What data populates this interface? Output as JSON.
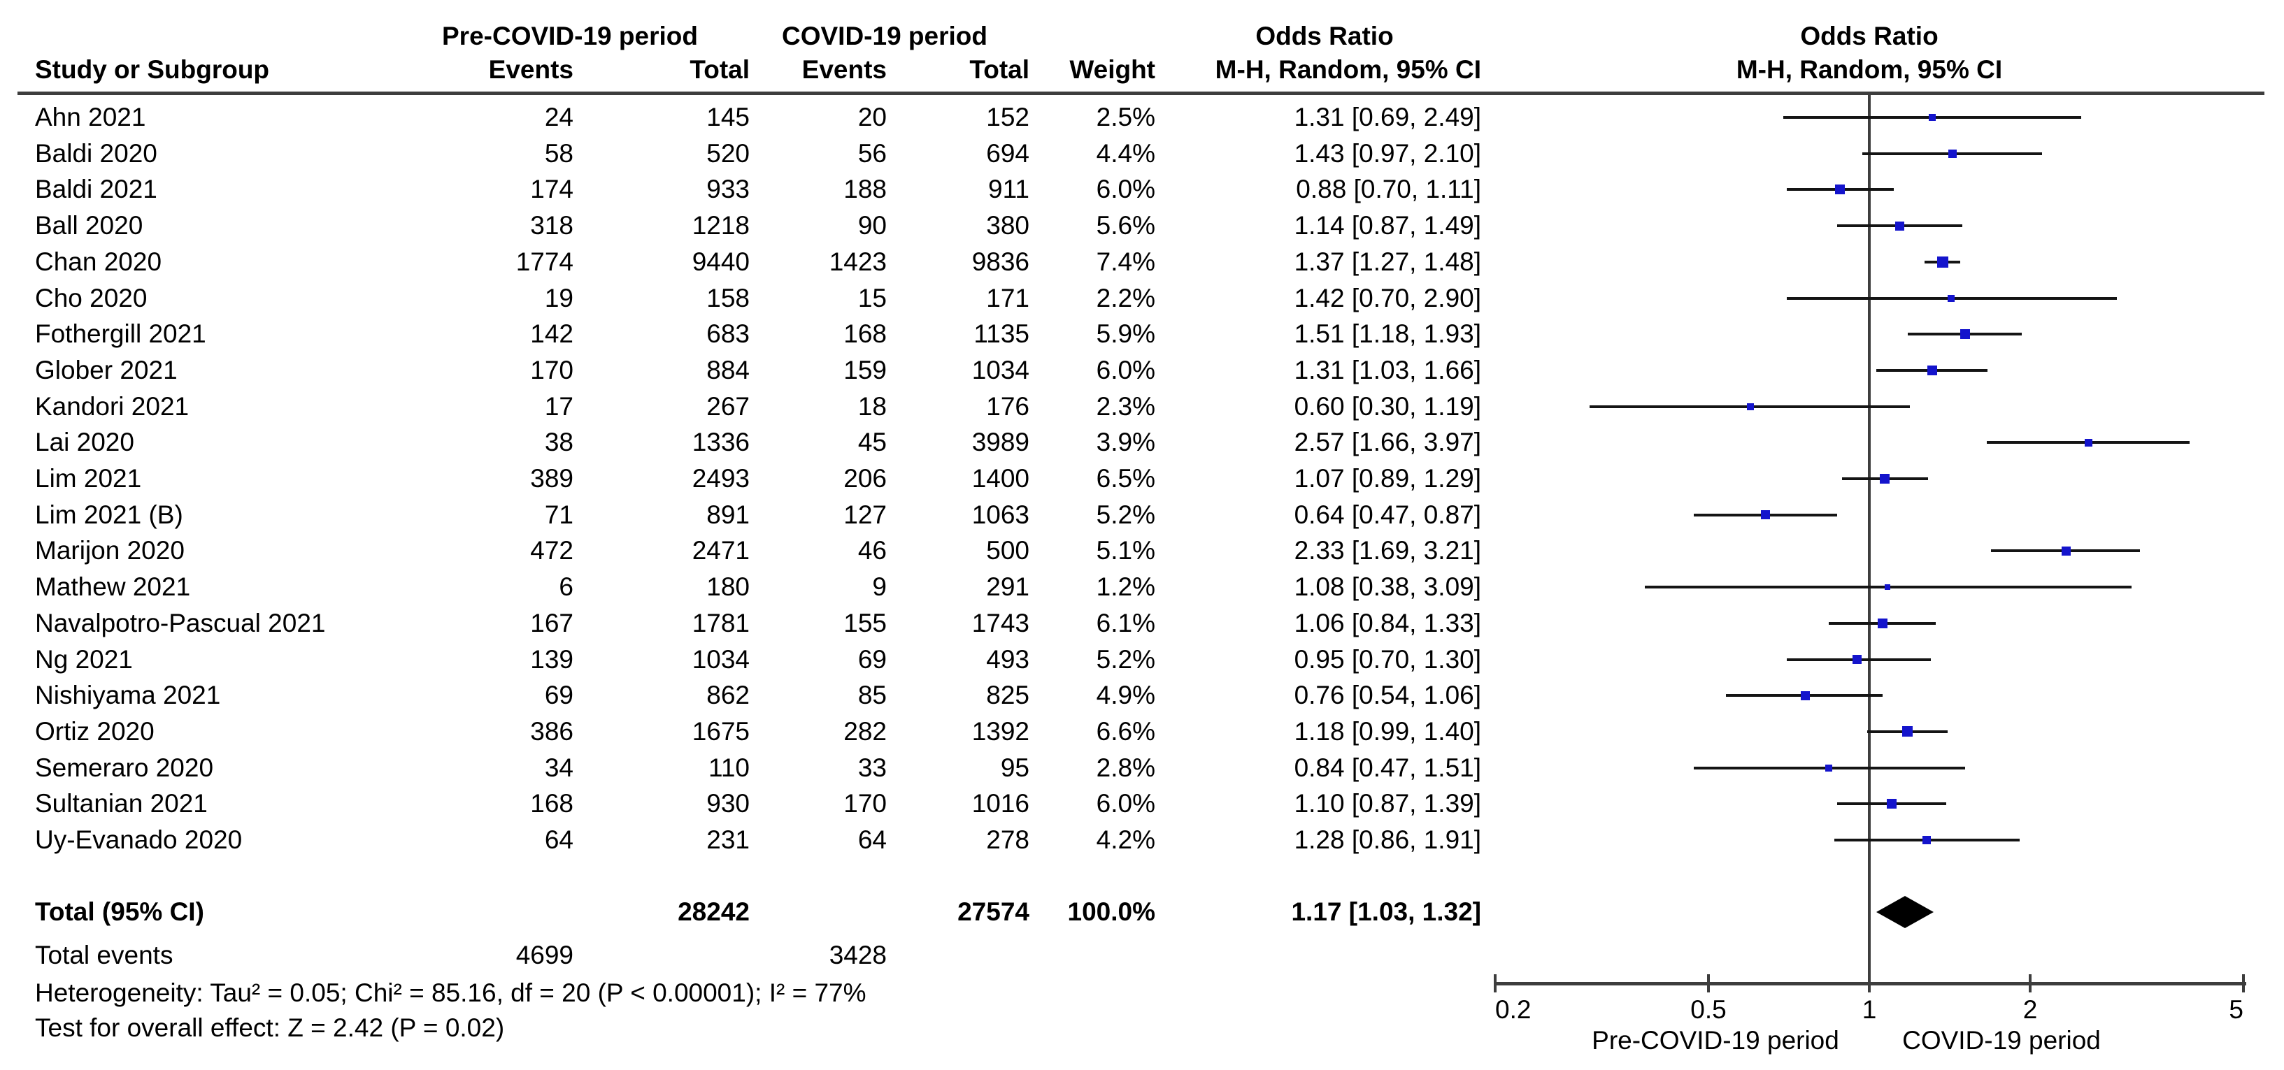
{
  "header": {
    "study_col": "Study or Subgroup",
    "group1": "Pre-COVID-19 period",
    "group2": "COVID-19 period",
    "events": "Events",
    "total": "Total",
    "weight": "Weight",
    "or_title": "Odds Ratio",
    "mh_subtitle": "M-H, Random, 95% CI"
  },
  "chart_data": {
    "type": "forest",
    "x_scale": "log",
    "effect_measure": "Odds Ratio, M-H, Random, 95% CI",
    "axis_ticks": [
      0.2,
      0.5,
      1,
      2,
      5
    ],
    "axis_range": [
      0.2,
      5
    ],
    "favours_left": "Pre-COVID-19 period",
    "favours_right": "COVID-19 period",
    "studies": [
      {
        "name": "Ahn 2021",
        "pre_events": "24",
        "pre_total": "145",
        "covid_events": "20",
        "covid_total": "152",
        "weight": "2.5%",
        "weight_pct": 2.5,
        "or": 1.31,
        "ci_low": 0.69,
        "ci_high": 2.49,
        "ci_text": "1.31 [0.69, 2.49]"
      },
      {
        "name": "Baldi 2020",
        "pre_events": "58",
        "pre_total": "520",
        "covid_events": "56",
        "covid_total": "694",
        "weight": "4.4%",
        "weight_pct": 4.4,
        "or": 1.43,
        "ci_low": 0.97,
        "ci_high": 2.1,
        "ci_text": "1.43 [0.97, 2.10]"
      },
      {
        "name": "Baldi 2021",
        "pre_events": "174",
        "pre_total": "933",
        "covid_events": "188",
        "covid_total": "911",
        "weight": "6.0%",
        "weight_pct": 6.0,
        "or": 0.88,
        "ci_low": 0.7,
        "ci_high": 1.11,
        "ci_text": "0.88 [0.70, 1.11]"
      },
      {
        "name": "Ball 2020",
        "pre_events": "318",
        "pre_total": "1218",
        "covid_events": "90",
        "covid_total": "380",
        "weight": "5.6%",
        "weight_pct": 5.6,
        "or": 1.14,
        "ci_low": 0.87,
        "ci_high": 1.49,
        "ci_text": "1.14 [0.87, 1.49]"
      },
      {
        "name": "Chan 2020",
        "pre_events": "1774",
        "pre_total": "9440",
        "covid_events": "1423",
        "covid_total": "9836",
        "weight": "7.4%",
        "weight_pct": 7.4,
        "or": 1.37,
        "ci_low": 1.27,
        "ci_high": 1.48,
        "ci_text": "1.37 [1.27, 1.48]"
      },
      {
        "name": "Cho 2020",
        "pre_events": "19",
        "pre_total": "158",
        "covid_events": "15",
        "covid_total": "171",
        "weight": "2.2%",
        "weight_pct": 2.2,
        "or": 1.42,
        "ci_low": 0.7,
        "ci_high": 2.9,
        "ci_text": "1.42 [0.70, 2.90]"
      },
      {
        "name": "Fothergill  2021",
        "pre_events": "142",
        "pre_total": "683",
        "covid_events": "168",
        "covid_total": "1135",
        "weight": "5.9%",
        "weight_pct": 5.9,
        "or": 1.51,
        "ci_low": 1.18,
        "ci_high": 1.93,
        "ci_text": "1.51 [1.18, 1.93]"
      },
      {
        "name": "Glober 2021",
        "pre_events": "170",
        "pre_total": "884",
        "covid_events": "159",
        "covid_total": "1034",
        "weight": "6.0%",
        "weight_pct": 6.0,
        "or": 1.31,
        "ci_low": 1.03,
        "ci_high": 1.66,
        "ci_text": "1.31 [1.03, 1.66]"
      },
      {
        "name": "Kandori 2021",
        "pre_events": "17",
        "pre_total": "267",
        "covid_events": "18",
        "covid_total": "176",
        "weight": "2.3%",
        "weight_pct": 2.3,
        "or": 0.6,
        "ci_low": 0.3,
        "ci_high": 1.19,
        "ci_text": "0.60 [0.30, 1.19]"
      },
      {
        "name": "Lai 2020",
        "pre_events": "38",
        "pre_total": "1336",
        "covid_events": "45",
        "covid_total": "3989",
        "weight": "3.9%",
        "weight_pct": 3.9,
        "or": 2.57,
        "ci_low": 1.66,
        "ci_high": 3.97,
        "ci_text": "2.57 [1.66, 3.97]"
      },
      {
        "name": "Lim 2021",
        "pre_events": "389",
        "pre_total": "2493",
        "covid_events": "206",
        "covid_total": "1400",
        "weight": "6.5%",
        "weight_pct": 6.5,
        "or": 1.07,
        "ci_low": 0.89,
        "ci_high": 1.29,
        "ci_text": "1.07 [0.89, 1.29]"
      },
      {
        "name": "Lim 2021 (B)",
        "pre_events": "71",
        "pre_total": "891",
        "covid_events": "127",
        "covid_total": "1063",
        "weight": "5.2%",
        "weight_pct": 5.2,
        "or": 0.64,
        "ci_low": 0.47,
        "ci_high": 0.87,
        "ci_text": "0.64 [0.47, 0.87]"
      },
      {
        "name": "Marijon 2020",
        "pre_events": "472",
        "pre_total": "2471",
        "covid_events": "46",
        "covid_total": "500",
        "weight": "5.1%",
        "weight_pct": 5.1,
        "or": 2.33,
        "ci_low": 1.69,
        "ci_high": 3.21,
        "ci_text": "2.33 [1.69, 3.21]"
      },
      {
        "name": "Mathew 2021",
        "pre_events": "6",
        "pre_total": "180",
        "covid_events": "9",
        "covid_total": "291",
        "weight": "1.2%",
        "weight_pct": 1.2,
        "or": 1.08,
        "ci_low": 0.38,
        "ci_high": 3.09,
        "ci_text": "1.08 [0.38, 3.09]"
      },
      {
        "name": "Navalpotro-Pascual 2021",
        "pre_events": "167",
        "pre_total": "1781",
        "covid_events": "155",
        "covid_total": "1743",
        "weight": "6.1%",
        "weight_pct": 6.1,
        "or": 1.06,
        "ci_low": 0.84,
        "ci_high": 1.33,
        "ci_text": "1.06 [0.84, 1.33]"
      },
      {
        "name": "Ng 2021",
        "pre_events": "139",
        "pre_total": "1034",
        "covid_events": "69",
        "covid_total": "493",
        "weight": "5.2%",
        "weight_pct": 5.2,
        "or": 0.95,
        "ci_low": 0.7,
        "ci_high": 1.3,
        "ci_text": "0.95 [0.70, 1.30]"
      },
      {
        "name": "Nishiyama 2021",
        "pre_events": "69",
        "pre_total": "862",
        "covid_events": "85",
        "covid_total": "825",
        "weight": "4.9%",
        "weight_pct": 4.9,
        "or": 0.76,
        "ci_low": 0.54,
        "ci_high": 1.06,
        "ci_text": "0.76 [0.54, 1.06]"
      },
      {
        "name": "Ortiz 2020",
        "pre_events": "386",
        "pre_total": "1675",
        "covid_events": "282",
        "covid_total": "1392",
        "weight": "6.6%",
        "weight_pct": 6.6,
        "or": 1.18,
        "ci_low": 0.99,
        "ci_high": 1.4,
        "ci_text": "1.18 [0.99, 1.40]"
      },
      {
        "name": "Semeraro 2020",
        "pre_events": "34",
        "pre_total": "110",
        "covid_events": "33",
        "covid_total": "95",
        "weight": "2.8%",
        "weight_pct": 2.8,
        "or": 0.84,
        "ci_low": 0.47,
        "ci_high": 1.51,
        "ci_text": "0.84 [0.47, 1.51]"
      },
      {
        "name": "Sultanian 2021",
        "pre_events": "168",
        "pre_total": "930",
        "covid_events": "170",
        "covid_total": "1016",
        "weight": "6.0%",
        "weight_pct": 6.0,
        "or": 1.1,
        "ci_low": 0.87,
        "ci_high": 1.39,
        "ci_text": "1.10 [0.87, 1.39]"
      },
      {
        "name": "Uy-Evanado 2020",
        "pre_events": "64",
        "pre_total": "231",
        "covid_events": "64",
        "covid_total": "278",
        "weight": "4.2%",
        "weight_pct": 4.2,
        "or": 1.28,
        "ci_low": 0.86,
        "ci_high": 1.91,
        "ci_text": "1.28 [0.86, 1.91]"
      }
    ],
    "total": {
      "label": "Total (95% CI)",
      "pre_total": "28242",
      "covid_total": "27574",
      "weight": "100.0%",
      "or": 1.17,
      "ci_low": 1.03,
      "ci_high": 1.32,
      "ci_text": "1.17 [1.03, 1.32]"
    }
  },
  "footer": {
    "total_events_label": "Total events",
    "pre_total_events": "4699",
    "covid_total_events": "3428",
    "heterogeneity": "Heterogeneity: Tau² = 0.05; Chi² = 85.16, df = 20 (P < 0.00001); I² = 77%",
    "overall_effect": "Test for overall effect: Z = 2.42 (P = 0.02)"
  },
  "colors": {
    "marker_blue": "#1414cc",
    "rule_gray": "#3d3d3d",
    "ci_black": "#141414",
    "diamond_black": "#000000"
  }
}
